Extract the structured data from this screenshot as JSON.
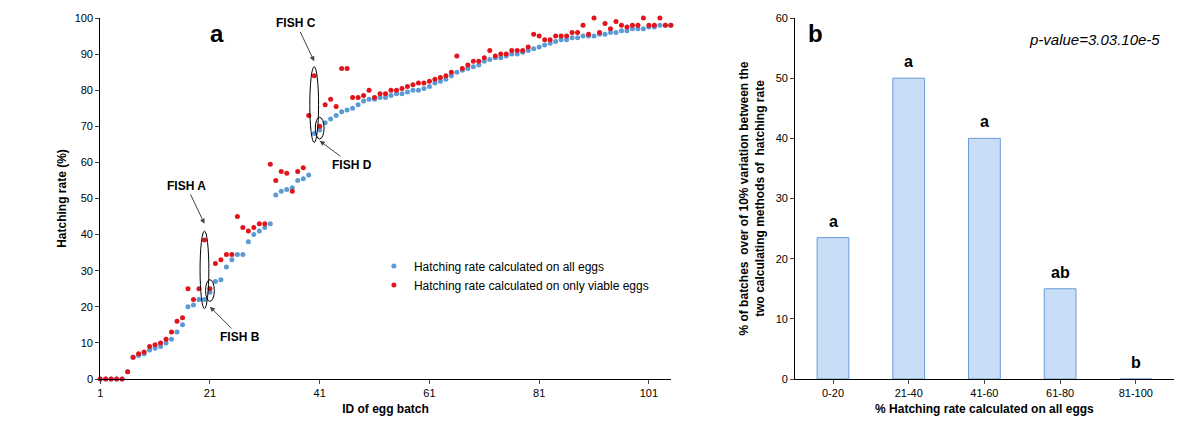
{
  "chart_data": [
    {
      "type": "scatter",
      "title": "a",
      "xlabel": "ID of egg batch",
      "ylabel": "Hatching rate (%)",
      "x": [
        1,
        2,
        3,
        4,
        5,
        6,
        7,
        8,
        9,
        10,
        11,
        12,
        13,
        14,
        15,
        16,
        17,
        18,
        19,
        20,
        21,
        22,
        23,
        24,
        25,
        26,
        27,
        28,
        29,
        30,
        31,
        32,
        33,
        34,
        35,
        36,
        37,
        38,
        39,
        40,
        41,
        42,
        43,
        44,
        45,
        46,
        47,
        48,
        49,
        50,
        51,
        52,
        53,
        54,
        55,
        56,
        57,
        58,
        59,
        60,
        61,
        62,
        63,
        64,
        65,
        66,
        67,
        68,
        69,
        70,
        71,
        72,
        73,
        74,
        75,
        76,
        77,
        78,
        79,
        80,
        81,
        82,
        83,
        84,
        85,
        86,
        87,
        88,
        89,
        90,
        91,
        92,
        93,
        94,
        95,
        96,
        97,
        98,
        99,
        100,
        101,
        102,
        103,
        104,
        105
      ],
      "series": [
        {
          "name": "Hatching rate calculated on all eggs",
          "color": "#5b9bd5",
          "values": [
            0,
            0,
            0,
            0,
            0,
            2,
            6,
            6.5,
            7,
            8,
            8.5,
            9,
            10,
            11,
            13,
            15,
            20,
            20.5,
            22,
            22,
            24,
            27,
            27.5,
            31,
            33,
            34.5,
            34.5,
            38,
            40,
            41,
            42,
            43,
            51,
            52,
            52.5,
            53,
            55,
            55.5,
            56.5,
            68,
            69,
            71,
            72,
            73,
            74,
            74.5,
            75,
            76,
            77,
            77.5,
            77.5,
            78,
            78,
            78.5,
            79,
            79,
            79.5,
            80,
            80,
            80.5,
            81,
            82,
            82.5,
            83,
            84,
            85,
            85.5,
            86,
            86.5,
            87,
            88,
            88.5,
            89,
            89,
            89.5,
            90,
            90,
            90.5,
            91,
            91.5,
            92,
            92.5,
            93,
            93.5,
            94,
            94,
            94.5,
            94.5,
            95,
            95,
            95,
            95.5,
            95.5,
            96,
            96,
            96.5,
            96.5,
            97,
            97,
            97,
            97.5,
            97.5,
            98,
            98,
            98
          ]
        },
        {
          "name": "Hatching rate calculated on only viable eggs",
          "color": "#e3141c",
          "values": [
            0,
            0,
            0,
            0,
            0,
            2,
            6,
            7,
            7.5,
            9,
            9.5,
            10,
            11,
            13,
            16,
            17,
            25,
            22,
            25,
            38.5,
            25,
            32,
            33,
            34.5,
            34.5,
            45,
            42,
            41,
            42,
            43,
            43,
            59.5,
            55,
            57.5,
            57,
            52,
            57.5,
            58.5,
            73,
            84,
            70,
            76,
            77.5,
            75.5,
            86,
            86,
            78,
            78,
            78.5,
            80,
            78,
            79,
            79,
            80,
            80,
            80.5,
            81,
            81.5,
            82,
            82,
            82.5,
            83,
            83.5,
            84,
            85,
            89.5,
            86,
            87,
            88,
            88,
            89,
            91,
            89.5,
            90,
            90,
            91,
            91,
            91,
            92,
            95.5,
            95,
            94,
            94,
            95,
            95,
            95,
            96,
            96,
            98,
            95.5,
            100,
            96,
            98.5,
            97,
            99,
            98,
            97.5,
            98,
            98,
            100,
            98,
            98,
            100,
            98,
            98
          ]
        }
      ],
      "xlim": [
        1,
        105
      ],
      "xticks": [
        1,
        21,
        41,
        61,
        81,
        101
      ],
      "ylim": [
        0,
        100
      ],
      "yticks": [
        0,
        10,
        20,
        30,
        40,
        50,
        60,
        70,
        80,
        90,
        100
      ],
      "grid": false,
      "legend": "lower right",
      "marker": "circle",
      "annotations": [
        {
          "text": "FISH A",
          "x": 20,
          "y": 43
        },
        {
          "text": "FISH B",
          "x": 21,
          "y": 20
        },
        {
          "text": "FISH C",
          "x": 40,
          "y": 88
        },
        {
          "text": "FISH D",
          "x": 41,
          "y": 66
        }
      ]
    },
    {
      "type": "bar",
      "title": "b",
      "xlabel": "% Hatching rate calculated on all eggs",
      "ylabel": [
        "% of batches  over of 10% variation between the",
        "two calculating methods of  hatching rate"
      ],
      "categories": [
        "0-20",
        "21-40",
        "41-60",
        "61-80",
        "81-100"
      ],
      "values": [
        23.5,
        50,
        40,
        15,
        0
      ],
      "color": "#c9ddf6",
      "ylim": [
        0,
        60
      ],
      "yticks": [
        0,
        10,
        20,
        30,
        40,
        50,
        60
      ],
      "grid": false,
      "annotations": [
        {
          "category": "0-20",
          "text": "a"
        },
        {
          "category": "21-40",
          "text": "a"
        },
        {
          "category": "41-60",
          "text": "a"
        },
        {
          "category": "61-80",
          "text": "ab"
        },
        {
          "category": "81-100",
          "text": "b"
        },
        {
          "text": "p-value=3.03.10e-5"
        }
      ]
    }
  ]
}
